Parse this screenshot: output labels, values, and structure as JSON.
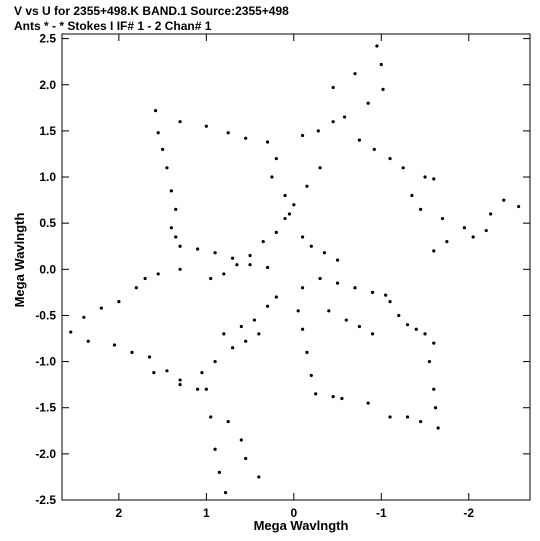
{
  "header": {
    "line1": "V vs U for 2355+498.K BAND.1   Source:2355+498",
    "line2": "Ants * - *     Stokes I  IF# 1 - 2  Chan# 1"
  },
  "chart_data": {
    "type": "scatter",
    "title": "V vs U for 2355+498.K BAND.1   Source:2355+498",
    "subtitle": "Ants * - *     Stokes I  IF# 1 - 2  Chan# 1",
    "xlabel": "Mega Wavlngth",
    "ylabel": "Mega Wavlngth",
    "xlim": [
      2.65,
      -2.7
    ],
    "ylim": [
      -2.5,
      2.55
    ],
    "x_reversed": true,
    "x_ticks": [
      2,
      1,
      0,
      -1,
      -2
    ],
    "x_tick_labels": [
      "2",
      "1",
      "0",
      "-1",
      "-2"
    ],
    "y_ticks": [
      2.5,
      2.0,
      1.5,
      1.0,
      0.5,
      0.0,
      -0.5,
      -1.0,
      -1.5,
      -2.0,
      -2.5
    ],
    "y_tick_labels": [
      "2.5",
      "2.0",
      "1.5",
      "1.0",
      "0.5",
      "0.0",
      "-0.5",
      "-1.0",
      "-1.5",
      "-2.0",
      "-2.5"
    ],
    "grid": false,
    "legend": "none",
    "marker_color": "#000000",
    "series": [
      {
        "points": [
          [
            -0.95,
            2.42
          ],
          [
            -1.0,
            2.22
          ],
          [
            -0.7,
            2.12
          ],
          [
            -0.45,
            1.97
          ],
          [
            -0.85,
            1.8
          ],
          [
            -1.02,
            1.95
          ],
          [
            -0.58,
            1.65
          ],
          [
            -0.45,
            1.6
          ],
          [
            -0.28,
            1.5
          ],
          [
            -0.1,
            1.45
          ],
          [
            -0.75,
            1.4
          ],
          [
            -0.92,
            1.3
          ],
          [
            -1.1,
            1.2
          ],
          [
            -1.25,
            1.1
          ],
          [
            -1.5,
            1.0
          ],
          [
            -1.6,
            0.98
          ],
          [
            -1.35,
            0.8
          ],
          [
            -1.45,
            0.65
          ],
          [
            -1.7,
            0.55
          ],
          [
            -1.95,
            0.45
          ],
          [
            -2.25,
            0.6
          ],
          [
            -2.4,
            0.75
          ],
          [
            -2.57,
            0.68
          ],
          [
            -2.2,
            0.42
          ],
          [
            -2.05,
            0.35
          ],
          [
            -1.75,
            0.3
          ],
          [
            -1.6,
            0.2
          ],
          [
            -0.3,
            1.1
          ],
          [
            -0.15,
            0.9
          ],
          [
            0.0,
            0.7
          ],
          [
            0.1,
            0.55
          ],
          [
            0.2,
            0.4
          ],
          [
            0.35,
            0.3
          ],
          [
            0.5,
            0.15
          ],
          [
            0.65,
            0.05
          ],
          [
            0.8,
            -0.05
          ],
          [
            0.95,
            -0.1
          ],
          [
            1.58,
            1.72
          ],
          [
            1.55,
            1.48
          ],
          [
            1.5,
            1.3
          ],
          [
            1.45,
            1.1
          ],
          [
            1.4,
            0.85
          ],
          [
            1.35,
            0.65
          ],
          [
            1.4,
            0.45
          ],
          [
            1.35,
            0.35
          ],
          [
            1.3,
            0.25
          ],
          [
            1.1,
            0.22
          ],
          [
            0.9,
            0.18
          ],
          [
            0.7,
            0.12
          ],
          [
            0.5,
            0.05
          ],
          [
            0.3,
            0.02
          ],
          [
            1.3,
            1.6
          ],
          [
            1.0,
            1.55
          ],
          [
            0.75,
            1.48
          ],
          [
            0.55,
            1.42
          ],
          [
            0.3,
            1.38
          ],
          [
            0.2,
            1.2
          ],
          [
            0.25,
            1.0
          ],
          [
            0.1,
            0.8
          ],
          [
            0.05,
            0.6
          ],
          [
            -0.1,
            0.35
          ],
          [
            -0.2,
            0.25
          ],
          [
            -0.35,
            0.18
          ],
          [
            -0.5,
            0.1
          ],
          [
            0.4,
            -0.7
          ],
          [
            0.55,
            -0.78
          ],
          [
            0.7,
            -0.85
          ],
          [
            0.9,
            -1.0
          ],
          [
            1.05,
            -1.12
          ],
          [
            1.0,
            -1.3
          ],
          [
            0.95,
            -1.6
          ],
          [
            0.9,
            -1.95
          ],
          [
            0.85,
            -2.2
          ],
          [
            0.78,
            -2.42
          ],
          [
            1.6,
            -1.12
          ],
          [
            1.3,
            -1.25
          ],
          [
            1.1,
            -1.3
          ],
          [
            0.75,
            -1.65
          ],
          [
            0.6,
            -1.85
          ],
          [
            0.55,
            -2.05
          ],
          [
            0.4,
            -2.25
          ],
          [
            2.55,
            -0.68
          ],
          [
            2.35,
            -0.78
          ],
          [
            2.05,
            -0.82
          ],
          [
            1.85,
            -0.9
          ],
          [
            1.65,
            -0.95
          ],
          [
            1.45,
            -1.1
          ],
          [
            1.3,
            -1.2
          ],
          [
            2.4,
            -0.52
          ],
          [
            2.2,
            -0.42
          ],
          [
            2.0,
            -0.35
          ],
          [
            1.8,
            -0.2
          ],
          [
            1.7,
            -0.1
          ],
          [
            1.55,
            -0.05
          ],
          [
            1.3,
            0.0
          ],
          [
            -0.1,
            -0.2
          ],
          [
            -0.05,
            -0.45
          ],
          [
            -0.1,
            -0.65
          ],
          [
            -0.15,
            -0.9
          ],
          [
            -0.2,
            -1.15
          ],
          [
            -0.25,
            -1.35
          ],
          [
            -0.45,
            -1.38
          ],
          [
            -0.55,
            -1.4
          ],
          [
            -1.1,
            -0.35
          ],
          [
            -1.2,
            -0.5
          ],
          [
            -1.3,
            -0.6
          ],
          [
            -1.4,
            -0.65
          ],
          [
            -1.5,
            -0.7
          ],
          [
            -1.6,
            -0.8
          ],
          [
            -1.55,
            -1.0
          ],
          [
            -1.6,
            -1.3
          ],
          [
            -1.62,
            -1.5
          ],
          [
            -1.65,
            -1.72
          ],
          [
            -1.45,
            -1.65
          ],
          [
            -1.3,
            -1.6
          ],
          [
            -1.1,
            -1.6
          ],
          [
            -0.85,
            -1.45
          ],
          [
            -0.3,
            -0.1
          ],
          [
            -0.5,
            -0.15
          ],
          [
            -0.7,
            -0.2
          ],
          [
            -0.9,
            -0.25
          ],
          [
            -1.05,
            -0.28
          ],
          [
            0.2,
            -0.3
          ],
          [
            0.3,
            -0.4
          ],
          [
            0.45,
            -0.55
          ],
          [
            0.6,
            -0.62
          ],
          [
            0.8,
            -0.7
          ],
          [
            -0.4,
            -0.45
          ],
          [
            -0.6,
            -0.55
          ],
          [
            -0.75,
            -0.62
          ],
          [
            -0.9,
            -0.7
          ]
        ]
      }
    ]
  }
}
